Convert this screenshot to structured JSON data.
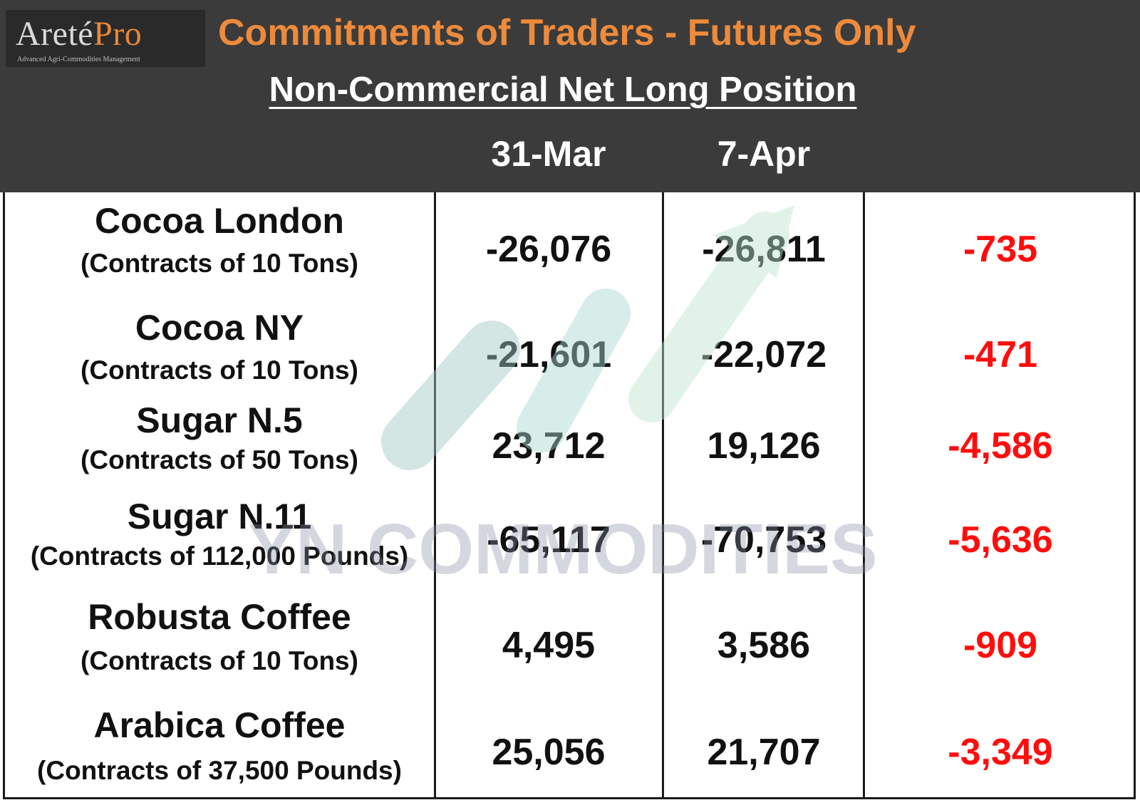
{
  "logo": {
    "word": "Areté",
    "pro": "Pro",
    "tagline": "Advanced Agri-Commodities Management"
  },
  "title": "Commitments of Traders - Futures Only",
  "subtitle": "Non-Commercial Net Long Position",
  "columns": {
    "date1": "31-Mar",
    "date2": "7-Apr",
    "change": ""
  },
  "rows": [
    {
      "name": "Cocoa London",
      "unit": "(Contracts of 10 Tons)",
      "v1": "-26,076",
      "v2": "-26,811",
      "change": "-735"
    },
    {
      "name": "Cocoa NY",
      "unit": "(Contracts of 10 Tons)",
      "v1": "-21,601",
      "v2": "-22,072",
      "change": "-471"
    },
    {
      "name": "Sugar N.5",
      "unit": "(Contracts of 50 Tons)",
      "v1": "23,712",
      "v2": "19,126",
      "change": "-4,586"
    },
    {
      "name": "Sugar N.11",
      "unit": "(Contracts of 112,000 Pounds)",
      "v1": "-65,117",
      "v2": "-70,753",
      "change": "-5,636"
    },
    {
      "name": "Robusta Coffee",
      "unit": "(Contracts of 10 Tons)",
      "v1": "4,495",
      "v2": "3,586",
      "change": "-909"
    },
    {
      "name": "Arabica Coffee",
      "unit": "(Contracts of 37,500 Pounds)",
      "v1": "25,056",
      "v2": "21,707",
      "change": "-3,349"
    }
  ],
  "watermark": {
    "text": "YN COMMODITIES",
    "icon": "rising-arrow-logo"
  },
  "colors": {
    "header_bg": "#3b3b3b",
    "title_orange": "#ed8a3b",
    "change_red": "#ff0d0d",
    "text": "#111111"
  }
}
